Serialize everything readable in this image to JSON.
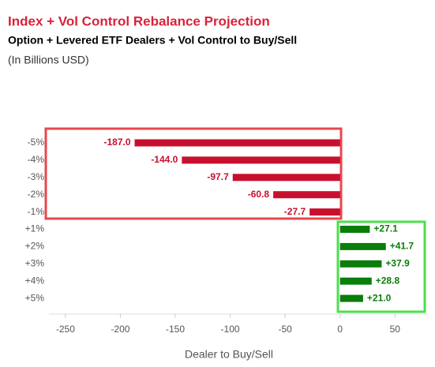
{
  "chart_data": {
    "type": "barh",
    "title": "Index + Vol Control Rebalance Projection",
    "subtitle": "Option + Levered ETF Dealers + Vol Control to Buy/Sell",
    "note": "(In Billions USD)",
    "x_label": "Dealer to Buy/Sell",
    "categories": [
      "-5%",
      "-4%",
      "-3%",
      "-2%",
      "-1%",
      "+1%",
      "+2%",
      "+3%",
      "+4%",
      "+5%"
    ],
    "values": [
      -187.0,
      -144.0,
      -97.7,
      -60.8,
      -27.7,
      27.1,
      41.7,
      37.9,
      28.8,
      21.0
    ],
    "value_labels": [
      "-187.0",
      "-144.0",
      "-97.7",
      "-60.8",
      "-27.7",
      "+27.1",
      "+41.7",
      "+37.9",
      "+28.8",
      "+21.0"
    ],
    "colors": [
      "#c8102e",
      "#c8102e",
      "#c8102e",
      "#c8102e",
      "#c8102e",
      "#0a7d0a",
      "#0a7d0a",
      "#0a7d0a",
      "#0a7d0a",
      "#0a7d0a"
    ],
    "xlim": [
      -265,
      80
    ],
    "xticks": [
      -250,
      -200,
      -150,
      -100,
      -50,
      0,
      50
    ]
  }
}
